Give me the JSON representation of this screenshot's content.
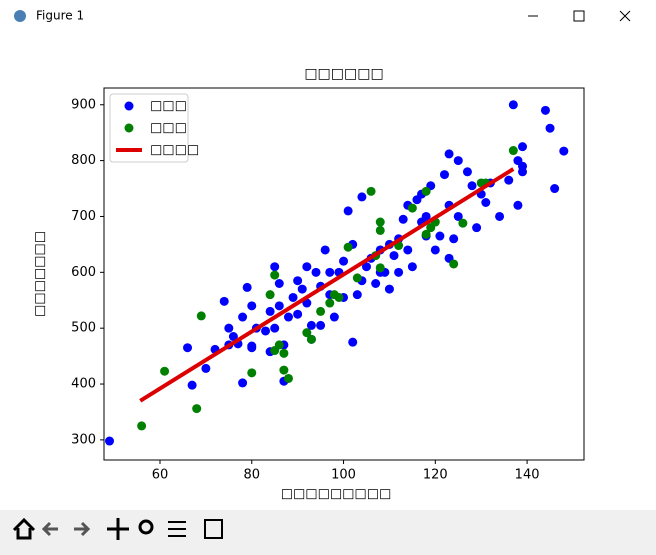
{
  "window": {
    "title": "Figure 1"
  },
  "chart_data": {
    "type": "scatter",
    "title": "□□□□□□",
    "x_label": "□□□□□□□□□",
    "y_label": "□□□□□□□",
    "xlim": [
      47.8,
      152.4
    ],
    "ylim": [
      264,
      930
    ],
    "xticks": [
      60,
      80,
      100,
      120,
      140
    ],
    "yticks": [
      300,
      400,
      500,
      600,
      700,
      800,
      900
    ],
    "legend": "upper left",
    "series": [
      {
        "name": "□□□",
        "type": "scatter",
        "color": "#0000ff",
        "x": [
          49,
          67,
          66,
          70,
          72,
          74,
          75,
          76,
          77,
          78,
          78,
          79,
          80,
          80,
          81,
          83,
          84,
          84,
          85,
          86,
          86,
          87,
          87,
          88,
          89,
          90,
          91,
          92,
          93,
          93,
          94,
          95,
          96,
          97,
          98,
          99,
          100,
          100,
          101,
          102,
          102,
          103,
          104,
          105,
          106,
          107,
          108,
          109,
          110,
          110,
          111,
          112,
          113,
          114,
          114,
          115,
          116,
          117,
          118,
          119,
          120,
          121,
          122,
          123,
          123,
          124,
          125,
          125,
          127,
          128,
          129,
          130,
          131,
          132,
          134,
          136,
          137,
          138,
          138,
          139,
          139,
          139,
          144,
          145,
          146,
          148,
          123,
          117,
          108,
          97,
          92,
          85,
          90,
          75,
          80,
          95,
          104,
          112,
          118
        ],
        "values": [
          298,
          398,
          465,
          428,
          462,
          548,
          500,
          485,
          472,
          402,
          520,
          573,
          468,
          540,
          500,
          495,
          458,
          530,
          610,
          580,
          540,
          405,
          470,
          520,
          555,
          585,
          570,
          610,
          505,
          480,
          600,
          575,
          640,
          560,
          520,
          600,
          555,
          620,
          710,
          475,
          650,
          560,
          735,
          610,
          625,
          580,
          640,
          600,
          650,
          570,
          630,
          660,
          695,
          640,
          720,
          610,
          730,
          740,
          700,
          755,
          640,
          665,
          775,
          720,
          625,
          660,
          800,
          700,
          780,
          755,
          680,
          740,
          725,
          760,
          700,
          765,
          900,
          720,
          800,
          790,
          780,
          825,
          890,
          858,
          750,
          817,
          812,
          690,
          600,
          600,
          545,
          500,
          525,
          470,
          465,
          505,
          585,
          600,
          665
        ]
      },
      {
        "name": "□□□",
        "type": "scatter",
        "color": "#008000",
        "x": [
          56,
          61,
          68,
          69,
          80,
          84,
          85,
          85,
          86,
          87,
          87,
          92,
          93,
          95,
          97,
          98,
          99,
          101,
          103,
          106,
          107,
          108,
          108,
          108,
          112,
          115,
          118,
          118,
          119,
          120,
          124,
          126,
          130,
          131,
          137,
          88
        ],
        "values": [
          325,
          423,
          356,
          522,
          420,
          560,
          595,
          460,
          470,
          455,
          425,
          492,
          480,
          530,
          545,
          560,
          555,
          645,
          590,
          745,
          630,
          690,
          675,
          608,
          648,
          715,
          668,
          745,
          680,
          690,
          615,
          688,
          760,
          760,
          818,
          410
        ]
      },
      {
        "name": "□□□□",
        "type": "line",
        "color": "#dd0000",
        "x": [
          55.7,
          137
        ],
        "values": [
          370,
          785
        ]
      }
    ]
  }
}
